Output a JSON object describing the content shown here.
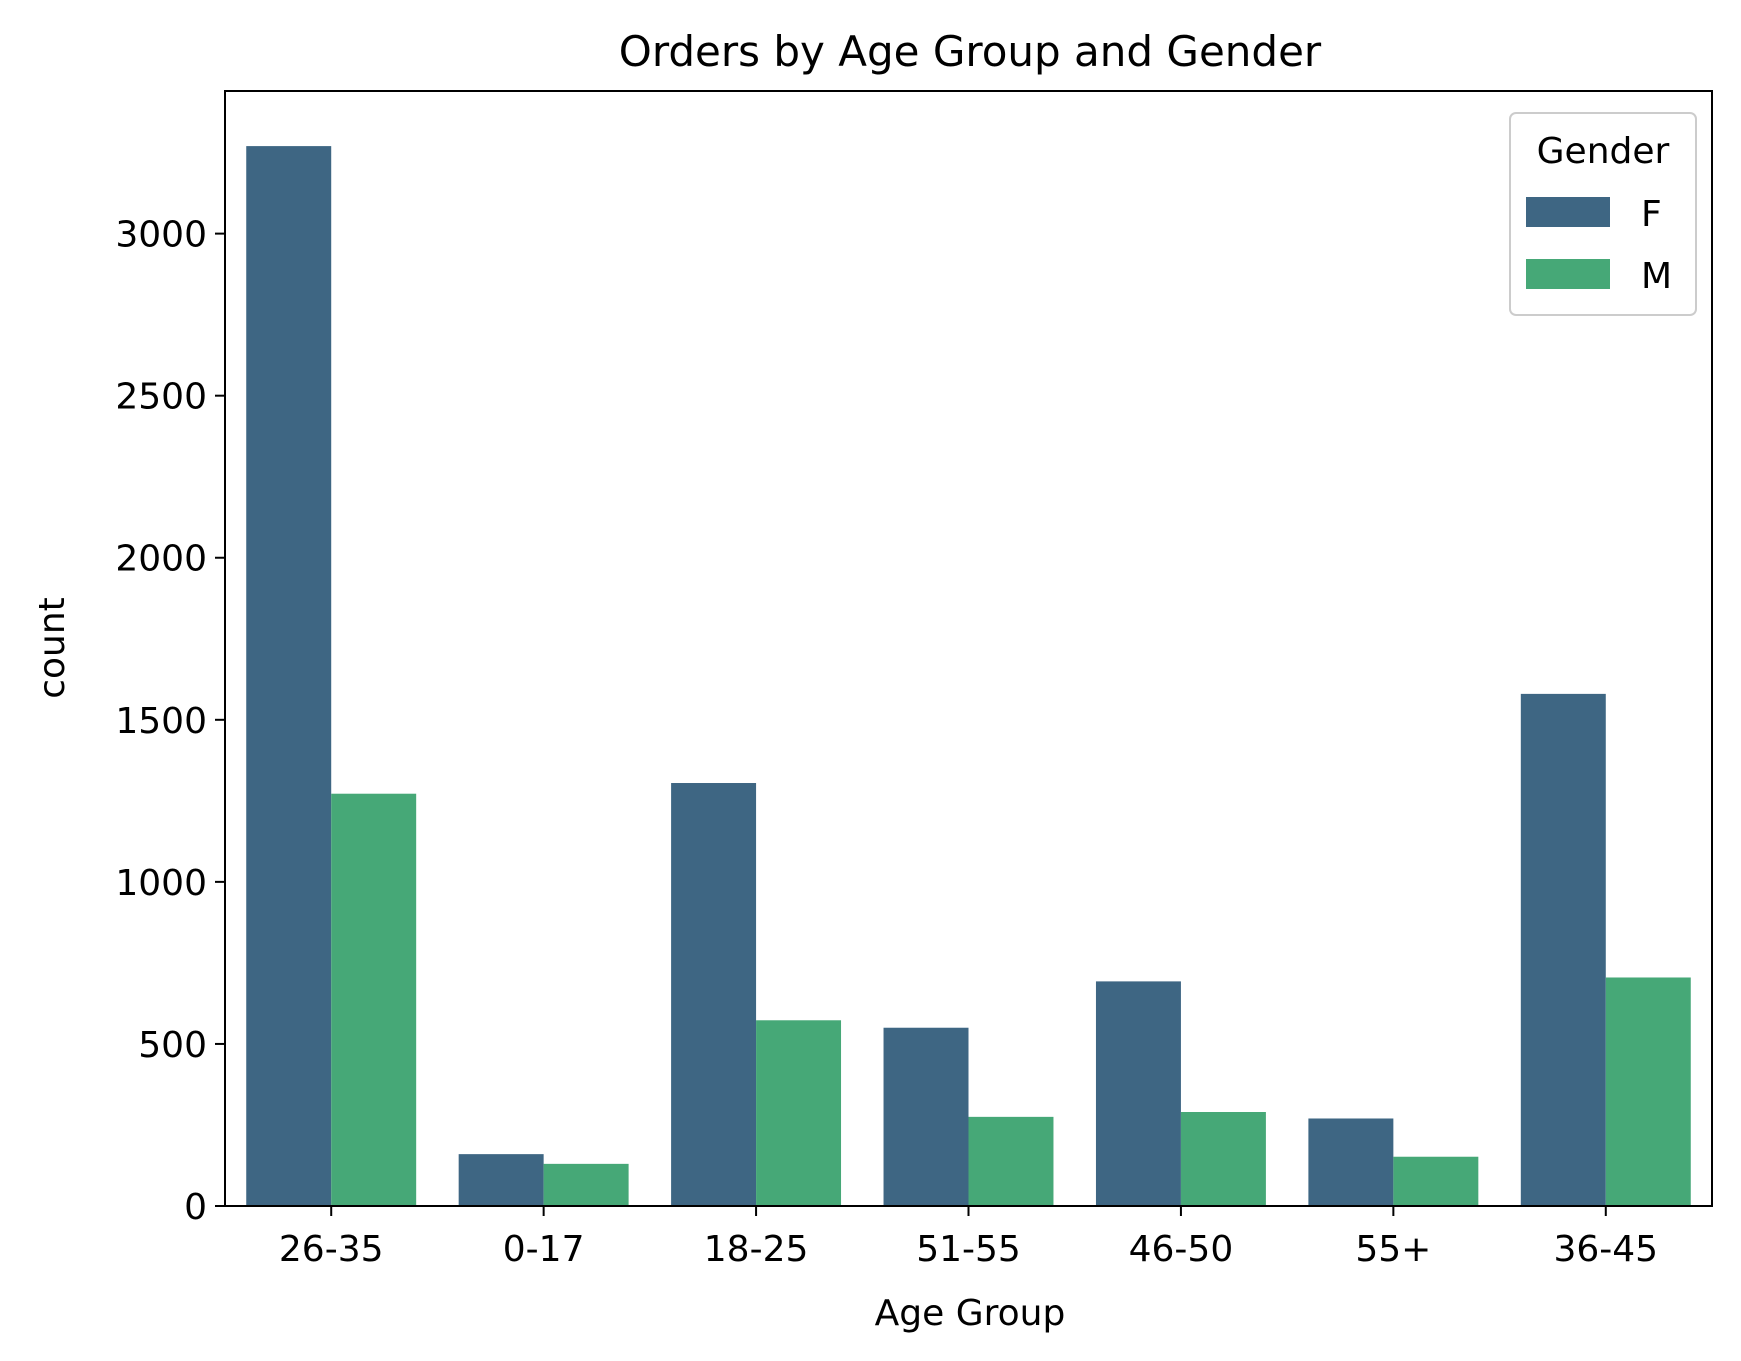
{
  "chart_data": {
    "type": "bar",
    "title": "Orders by Age Group and Gender",
    "xlabel": "Age Group",
    "ylabel": "count",
    "categories": [
      "26-35",
      "0-17",
      "18-25",
      "51-55",
      "46-50",
      "55+",
      "36-45"
    ],
    "series": [
      {
        "name": "F",
        "color": "#3e6683",
        "values": [
          3270,
          160,
          1305,
          550,
          693,
          270,
          1580
        ]
      },
      {
        "name": "M",
        "color": "#46a877",
        "values": [
          1272,
          130,
          573,
          275,
          290,
          152,
          705
        ]
      }
    ],
    "ylim": [
      0,
      3440
    ],
    "yticks": [
      0,
      500,
      1000,
      1500,
      2000,
      2500,
      3000
    ],
    "ytick_labels": [
      "0",
      "500",
      "1000",
      "1500",
      "2000",
      "2500",
      "3000"
    ],
    "legend": {
      "title": "Gender",
      "placement": "top-right"
    },
    "grid": false
  }
}
